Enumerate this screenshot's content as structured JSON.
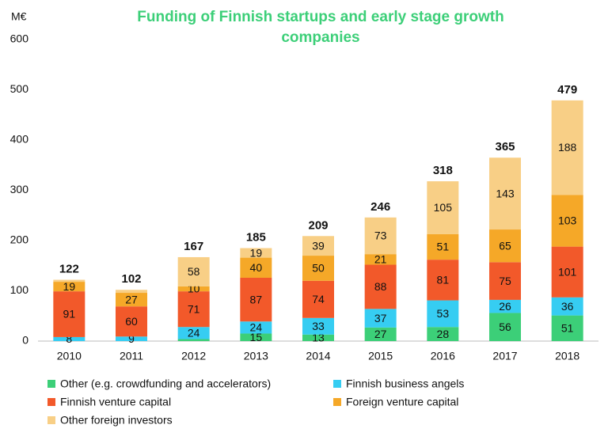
{
  "chart_data": {
    "type": "stacked_bar",
    "title": "Funding of Finnish startups and early stage growth",
    "title_line2": "companies",
    "y_unit": "M€",
    "categories": [
      "2010",
      "2011",
      "2012",
      "2013",
      "2014",
      "2015",
      "2016",
      "2017",
      "2018"
    ],
    "series": [
      {
        "name": "Other (e.g. crowdfunding and accelerators)",
        "color": "#3ccf78",
        "values": [
          0,
          0,
          4,
          15,
          13,
          27,
          28,
          56,
          51
        ]
      },
      {
        "name": "Finnish business angels",
        "color": "#36cdf2",
        "values": [
          8,
          9,
          24,
          24,
          33,
          37,
          53,
          26,
          36
        ]
      },
      {
        "name": "Finnish venture capital",
        "color": "#f2592a",
        "values": [
          91,
          60,
          71,
          87,
          74,
          88,
          81,
          75,
          101
        ]
      },
      {
        "name": "Foreign venture capital",
        "color": "#f5a828",
        "values": [
          19,
          27,
          10,
          40,
          50,
          21,
          51,
          65,
          103
        ]
      },
      {
        "name": "Other foreign investors",
        "color": "#f8cf86",
        "values": [
          4,
          6,
          58,
          19,
          39,
          73,
          105,
          143,
          188
        ]
      }
    ],
    "totals": [
      122,
      102,
      167,
      185,
      209,
      246,
      318,
      365,
      479
    ],
    "ylim": [
      0,
      600
    ],
    "yticks": [
      0,
      100,
      200,
      300,
      400,
      500,
      600
    ]
  }
}
